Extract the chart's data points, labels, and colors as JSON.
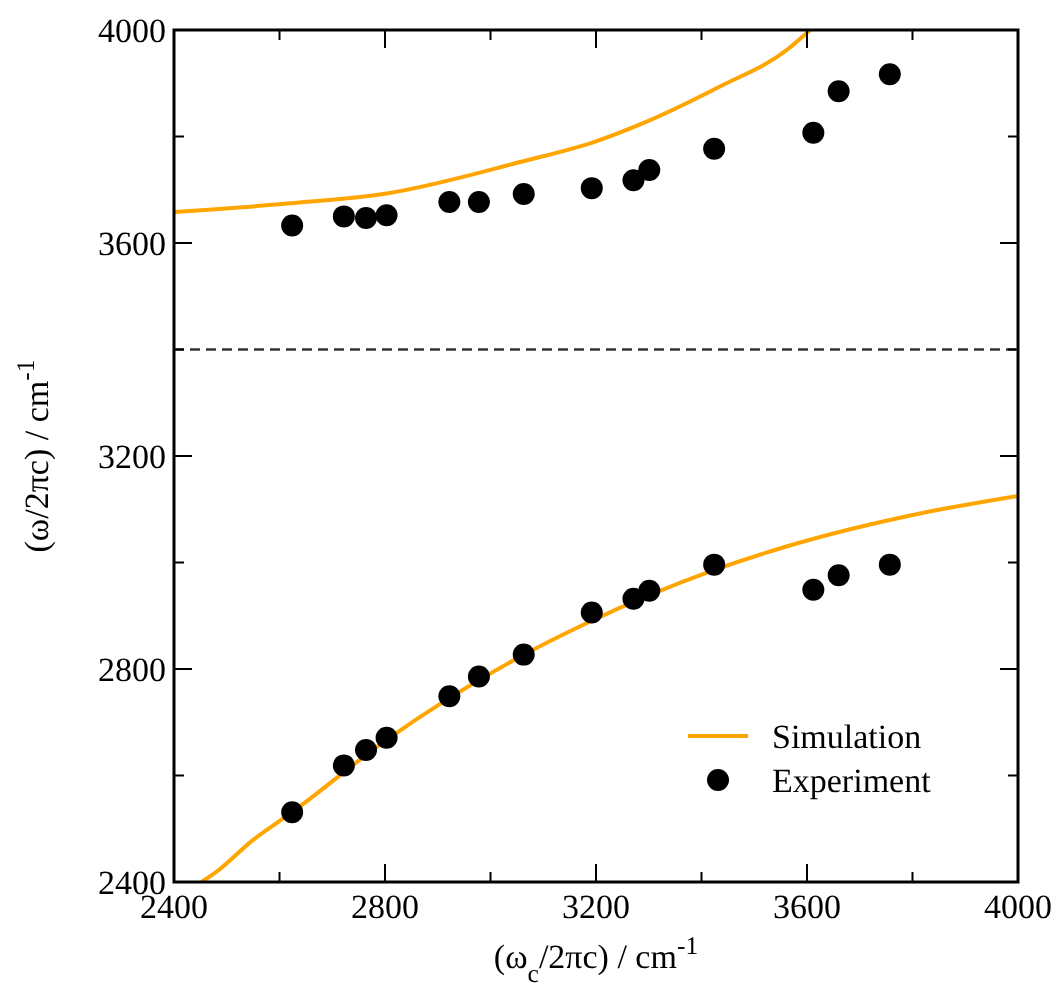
{
  "chart_data": {
    "type": "line",
    "xlabel": "(ω$_{c}$/2πc) / cm$^{-1}$",
    "ylabel": "(ω/2πc) / cm$^{-1}$",
    "xlim": [
      2400,
      4000
    ],
    "ylim": [
      2400,
      4000
    ],
    "xticks": [
      2400,
      {
        "value": 2600,
        "label": null
      },
      2800,
      {
        "value": 3000,
        "label": null
      },
      3200,
      {
        "value": 3400,
        "label": null
      },
      3600,
      {
        "value": 3800,
        "label": null
      },
      4000
    ],
    "yticks": [
      2400,
      {
        "value": 2600,
        "label": null
      },
      2800,
      {
        "value": 3000,
        "label": null
      },
      3200,
      {
        "value": 3400,
        "label": null
      },
      3600,
      {
        "value": 3800,
        "label": null
      },
      4000
    ],
    "legend": "bottom right",
    "grid": false,
    "ref_lines": [
      {
        "axis": "y",
        "value": 3400,
        "color": "#333333",
        "line_style": "dashed"
      }
    ],
    "series": [
      {
        "name": "Simulation",
        "color": "#ffa500",
        "marker": "none",
        "x": [
          2452,
          2479,
          2550,
          2624,
          2803,
          3056,
          3182,
          3422,
          3561,
          3814,
          4000
        ],
        "values": [
          2400,
          2418,
          2479,
          2531,
          2667,
          2823,
          2886,
          2985,
          3030,
          3092,
          3125
        ]
      },
      {
        "color": "#ffa500",
        "marker": "none",
        "x": [
          2400,
          2614,
          2803,
          3056,
          3200,
          3296,
          3435,
          3561,
          3606
        ],
        "values": [
          3658,
          3674,
          3693,
          3752,
          3791,
          3828,
          3894,
          3962,
          4000
        ]
      },
      {
        "name": "Experiment",
        "type": "scatter",
        "color": "#000000",
        "marker": "circle",
        "x": [
          2624,
          2722,
          2764,
          2803,
          2922,
          2978,
          3063,
          3192,
          3271,
          3301,
          3424,
          3612,
          3660,
          3757,
          2624,
          2722,
          2764,
          2803,
          2922,
          2978,
          3063,
          3192,
          3271,
          3301,
          3424,
          3612,
          3660,
          3757
        ],
        "values": [
          3633,
          3650,
          3647,
          3652,
          3677,
          3677,
          3692,
          3703,
          3718,
          3737,
          3777,
          3807,
          3885,
          3917,
          2531,
          2619,
          2648,
          2671,
          2749,
          2786,
          2827,
          2906,
          2932,
          2947,
          2996,
          2949,
          2976,
          2996
        ]
      }
    ]
  }
}
